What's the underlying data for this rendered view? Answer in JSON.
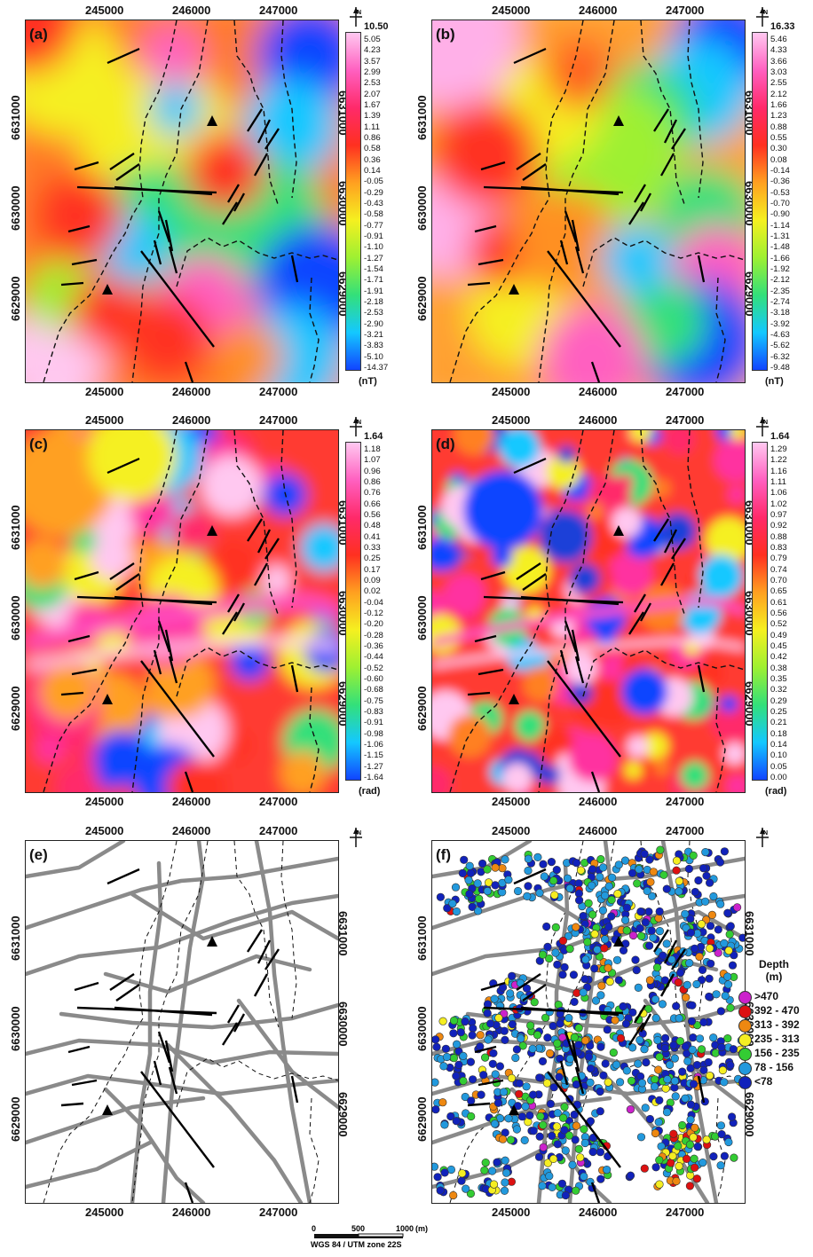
{
  "panels": [
    {
      "id": "a",
      "label": "(a)",
      "type": "continuous",
      "colorbar": {
        "max": "10.50",
        "labels": [
          "5.05",
          "4.23",
          "3.57",
          "2.99",
          "2.53",
          "2.07",
          "1.67",
          "1.39",
          "1.11",
          "0.86",
          "0.58",
          "0.36",
          "0.14",
          "-0.05",
          "-0.29",
          "-0.43",
          "-0.58",
          "-0.77",
          "-0.91",
          "-1.10",
          "-1.27",
          "-1.54",
          "-1.71",
          "-1.91",
          "-2.18",
          "-2.53",
          "-2.90",
          "-3.21",
          "-3.83",
          "-5.10",
          "-14.37"
        ],
        "unit": "(nT)"
      }
    },
    {
      "id": "b",
      "label": "(b)",
      "type": "continuous",
      "colorbar": {
        "max": "16.33",
        "labels": [
          "5.46",
          "4.33",
          "3.66",
          "3.03",
          "2.55",
          "2.12",
          "1.66",
          "1.23",
          "0.88",
          "0.55",
          "0.30",
          "0.08",
          "-0.14",
          "-0.36",
          "-0.53",
          "-0.70",
          "-0.90",
          "-1.14",
          "-1.31",
          "-1.48",
          "-1.66",
          "-1.92",
          "-2.12",
          "-2.35",
          "-2.74",
          "-3.18",
          "-3.92",
          "-4.63",
          "-5.62",
          "-6.32",
          "-9.48"
        ],
        "unit": "(nT)"
      }
    },
    {
      "id": "c",
      "label": "(c)",
      "type": "banded",
      "colorbar": {
        "max": "1.64",
        "labels": [
          "1.18",
          "1.07",
          "0.96",
          "0.86",
          "0.76",
          "0.66",
          "0.56",
          "0.48",
          "0.41",
          "0.33",
          "0.25",
          "0.17",
          "0.09",
          "0.02",
          "-0.04",
          "-0.12",
          "-0.20",
          "-0.28",
          "-0.36",
          "-0.44",
          "-0.52",
          "-0.60",
          "-0.68",
          "-0.75",
          "-0.83",
          "-0.91",
          "-0.98",
          "-1.06",
          "-1.15",
          "-1.27",
          "-1.64"
        ],
        "unit": "(rad)"
      }
    },
    {
      "id": "d",
      "label": "(d)",
      "type": "banded",
      "colorbar": {
        "max": "1.64",
        "labels": [
          "1.29",
          "1.22",
          "1.16",
          "1.11",
          "1.06",
          "1.02",
          "0.97",
          "0.92",
          "0.88",
          "0.83",
          "0.79",
          "0.74",
          "0.70",
          "0.65",
          "0.61",
          "0.56",
          "0.52",
          "0.49",
          "0.45",
          "0.42",
          "0.38",
          "0.35",
          "0.32",
          "0.29",
          "0.25",
          "0.21",
          "0.18",
          "0.14",
          "0.10",
          "0.05",
          "0.00"
        ],
        "unit": "(rad)"
      }
    },
    {
      "id": "e",
      "label": "(e)",
      "type": "lineament"
    },
    {
      "id": "f",
      "label": "(f)",
      "type": "depth"
    }
  ],
  "axes": {
    "x_ticks": [
      "245000",
      "246000",
      "247000"
    ],
    "y_ticks": [
      "6631000",
      "6630000",
      "6629000"
    ]
  },
  "legend": {
    "title": "Depth",
    "unit": "(m)",
    "entries": [
      {
        "label": ">470",
        "color": "#cc22cc"
      },
      {
        "label": "392 - 470",
        "color": "#dd1111"
      },
      {
        "label": "313 - 392",
        "color": "#ee8811"
      },
      {
        "label": "235 - 313",
        "color": "#f5ee22"
      },
      {
        "label": "156 - 235",
        "color": "#33cc33"
      },
      {
        "label": "78 - 156",
        "color": "#2299dd"
      },
      {
        "label": "<78",
        "color": "#1122bb"
      }
    ]
  },
  "scale": {
    "zero": "0",
    "mid": "500",
    "end": "1000",
    "unit": "(m)",
    "projection": "WGS 84 / UTM zone 22S"
  },
  "north_symbol": "north-arrow-icon"
}
